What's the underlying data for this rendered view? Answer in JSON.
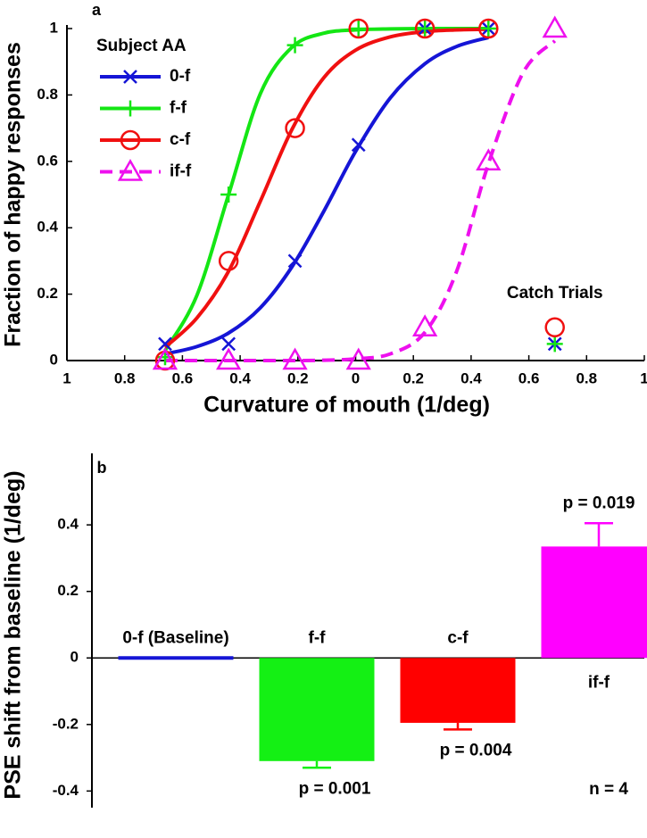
{
  "chart_data": [
    {
      "type": "line",
      "panel_label": "a",
      "xlabel": "Curvature of mouth (1/deg)",
      "ylabel": "Fraction of happy responses",
      "xlim": [
        -1,
        1
      ],
      "ylim": [
        0,
        1
      ],
      "xticks": [
        {
          "value": -1,
          "label": "1"
        },
        {
          "value": -0.8,
          "label": "0.8"
        },
        {
          "value": -0.6,
          "label": "0.6"
        },
        {
          "value": -0.4,
          "label": "0.4"
        },
        {
          "value": -0.2,
          "label": "0.2"
        },
        0,
        0.2,
        0.4,
        0.6,
        0.8,
        1
      ],
      "yticks": [
        0,
        0.2,
        0.4,
        0.6,
        0.8,
        1
      ],
      "legend_title": "Subject AA",
      "legend_position": "upper left",
      "series": [
        {
          "name": "0-f",
          "color": "#1515d6",
          "marker": "x",
          "dashed": false,
          "x": [
            -0.66,
            -0.44,
            -0.21,
            0.01,
            0.24,
            0.46
          ],
          "values": [
            0.05,
            0.05,
            0.3,
            0.65,
            1,
            1
          ],
          "fit": {
            "x": [
              -0.66,
              -0.55,
              -0.44,
              -0.33,
              -0.22,
              -0.11,
              0,
              0.12,
              0.24,
              0.35,
              0.46
            ],
            "values": [
              0.02,
              0.042,
              0.083,
              0.159,
              0.283,
              0.45,
              0.63,
              0.791,
              0.894,
              0.946,
              0.973
            ]
          }
        },
        {
          "name": "f-f",
          "color": "#14e614",
          "marker": "+",
          "dashed": false,
          "x": [
            -0.66,
            -0.44,
            -0.21,
            0.01,
            0.24,
            0.46
          ],
          "values": [
            0.01,
            0.5,
            0.95,
            1,
            1,
            1
          ],
          "fit": {
            "x": [
              -0.66,
              -0.55,
              -0.44,
              -0.33,
              -0.22,
              -0.11,
              0,
              0.12,
              0.24,
              0.35,
              0.46
            ],
            "values": [
              0.03,
              0.196,
              0.5,
              0.804,
              0.944,
              0.986,
              0.996,
              0.999,
              1,
              1,
              1
            ]
          }
        },
        {
          "name": "c-f",
          "color": "#f01010",
          "marker": "o",
          "dashed": false,
          "x": [
            -0.66,
            -0.44,
            -0.21,
            0.01,
            0.24,
            0.46
          ],
          "values": [
            0,
            0.3,
            0.7,
            1,
            1,
            1
          ],
          "fit": {
            "x": [
              -0.66,
              -0.55,
              -0.44,
              -0.33,
              -0.22,
              -0.11,
              0,
              0.12,
              0.24,
              0.35,
              0.46
            ],
            "values": [
              0.04,
              0.128,
              0.269,
              0.48,
              0.697,
              0.852,
              0.935,
              0.975,
              0.991,
              0.996,
              0.998
            ]
          }
        },
        {
          "name": "if-f",
          "color": "#ee10ee",
          "marker": "^",
          "dashed": true,
          "x": [
            -0.66,
            -0.44,
            -0.21,
            0.01,
            0.24,
            0.46,
            0.69
          ],
          "values": [
            0,
            0,
            0,
            0,
            0.1,
            0.6,
            1
          ],
          "fit": {
            "x": [
              -0.66,
              -0.55,
              -0.44,
              -0.33,
              -0.22,
              -0.11,
              0,
              0.12,
              0.24,
              0.35,
              0.46,
              0.58,
              0.69
            ],
            "values": [
              0,
              0,
              0,
              0,
              0,
              0.001,
              0.005,
              0.02,
              0.085,
              0.269,
              0.593,
              0.867,
              0.963
            ]
          }
        }
      ],
      "catch_trials": {
        "label": "Catch Trials",
        "x": 0.69,
        "values": [
          0.05,
          0.05,
          0.1,
          null
        ]
      }
    },
    {
      "type": "bar",
      "panel_label": "b",
      "ylabel": "PSE shift from baseline (1/deg)",
      "categories": [
        "0-f (Baseline)",
        "f-f",
        "c-f",
        "if-f"
      ],
      "values": [
        0,
        -0.31,
        -0.195,
        0.335
      ],
      "errors": [
        null,
        0.02,
        0.02,
        0.07
      ],
      "colors": [
        "#1515d6",
        "#14f014",
        "#ff0000",
        "#ff00ff"
      ],
      "p_labels": [
        null,
        "p = 0.001",
        "p = 0.004",
        "p = 0.019"
      ],
      "note": "n = 4",
      "ylim": [
        -0.45,
        0.615
      ],
      "yticks": [
        -0.4,
        -0.2,
        0,
        0.2,
        0.4
      ]
    }
  ]
}
